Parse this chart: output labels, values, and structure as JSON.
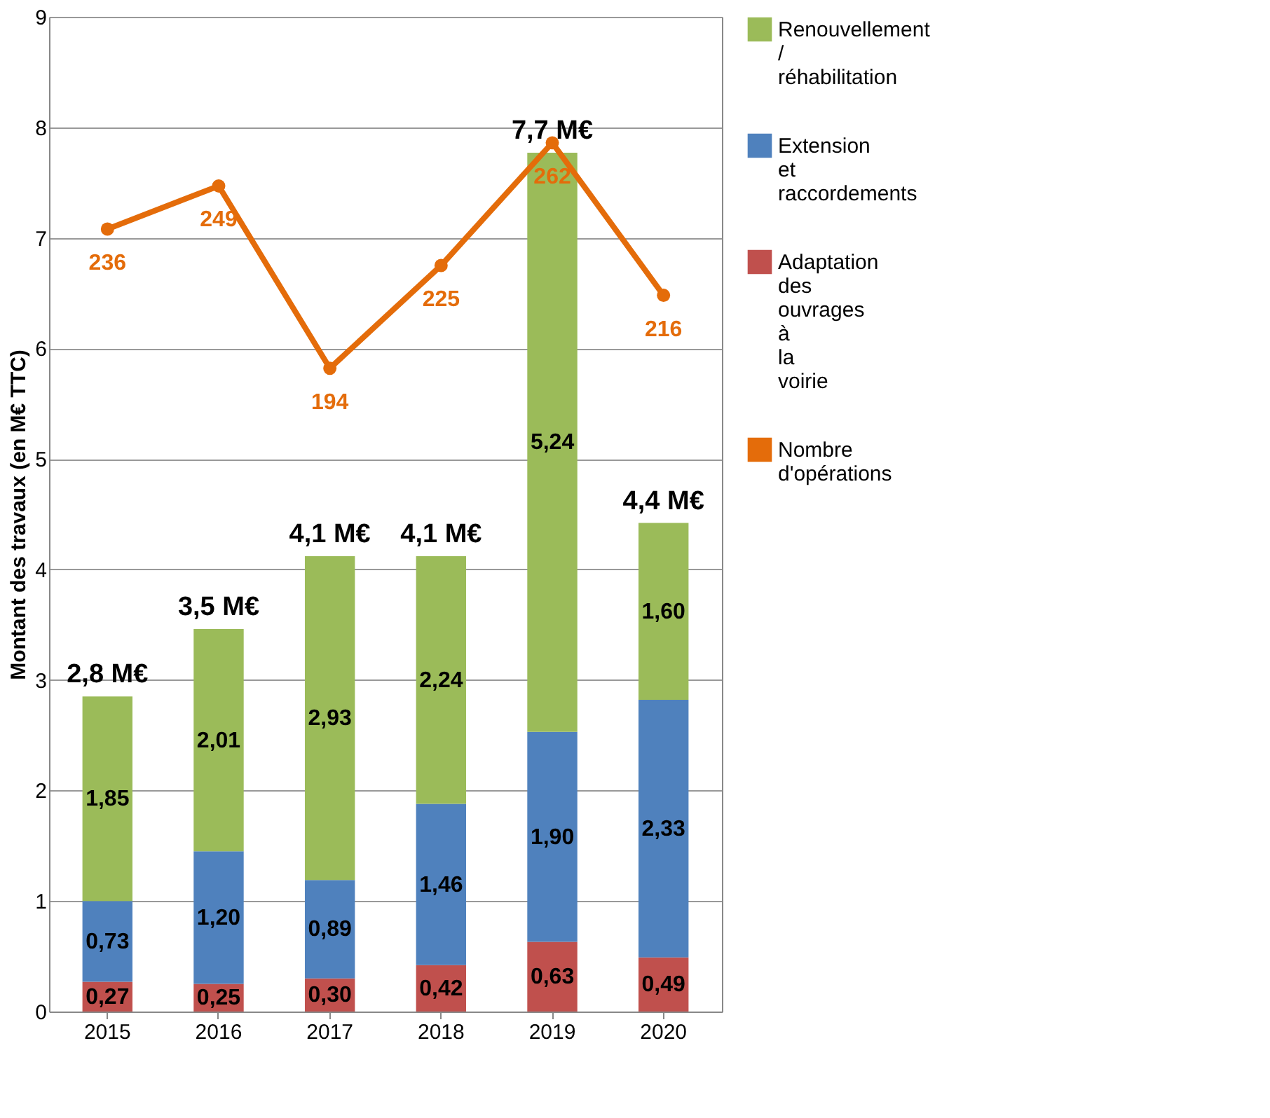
{
  "chart_data": {
    "type": "bar",
    "stacked": true,
    "ylabel": "Montant des travaux (en M€ TTC)",
    "categories": [
      "2015",
      "2016",
      "2017",
      "2018",
      "2019",
      "2020"
    ],
    "series": [
      {
        "name": "Adaptation des ouvrages à la voirie",
        "color": "#c0504d",
        "values": [
          0.27,
          0.25,
          0.3,
          0.42,
          0.63,
          0.49
        ],
        "value_labels": [
          "0,27",
          "0,25",
          "0,30",
          "0,42",
          "0,63",
          "0,49"
        ]
      },
      {
        "name": "Extension et raccordements",
        "color": "#4f81bd",
        "values": [
          0.73,
          1.2,
          0.89,
          1.46,
          1.9,
          2.33
        ],
        "value_labels": [
          "0,73",
          "1,20",
          "0,89",
          "1,46",
          "1,90",
          "2,33"
        ]
      },
      {
        "name": "Renouvellement / réhabilitation",
        "color": "#9bbb59",
        "values": [
          1.85,
          2.01,
          2.93,
          2.24,
          5.24,
          1.6
        ],
        "value_labels": [
          "1,85",
          "2,01",
          "2,93",
          "2,24",
          "5,24",
          "1,60"
        ]
      },
      {
        "name": "Nombre d'opérations",
        "type": "line",
        "axis": "y2",
        "color": "#e46c0a",
        "values": [
          236,
          249,
          194,
          225,
          262,
          216
        ],
        "value_labels": [
          "236",
          "249",
          "194",
          "225",
          "262",
          "216"
        ]
      }
    ],
    "totals": [
      "2,8 M€",
      "3,5 M€",
      "4,1 M€",
      "4,1 M€",
      "7,7 M€",
      "4,4 M€"
    ],
    "ylim": [
      0,
      9
    ],
    "yticks": [
      0,
      1,
      2,
      3,
      4,
      5,
      6,
      7,
      8,
      9
    ],
    "y2lim": [
      0,
      300
    ],
    "grid": "y",
    "legend": "right",
    "marker": "circle"
  }
}
